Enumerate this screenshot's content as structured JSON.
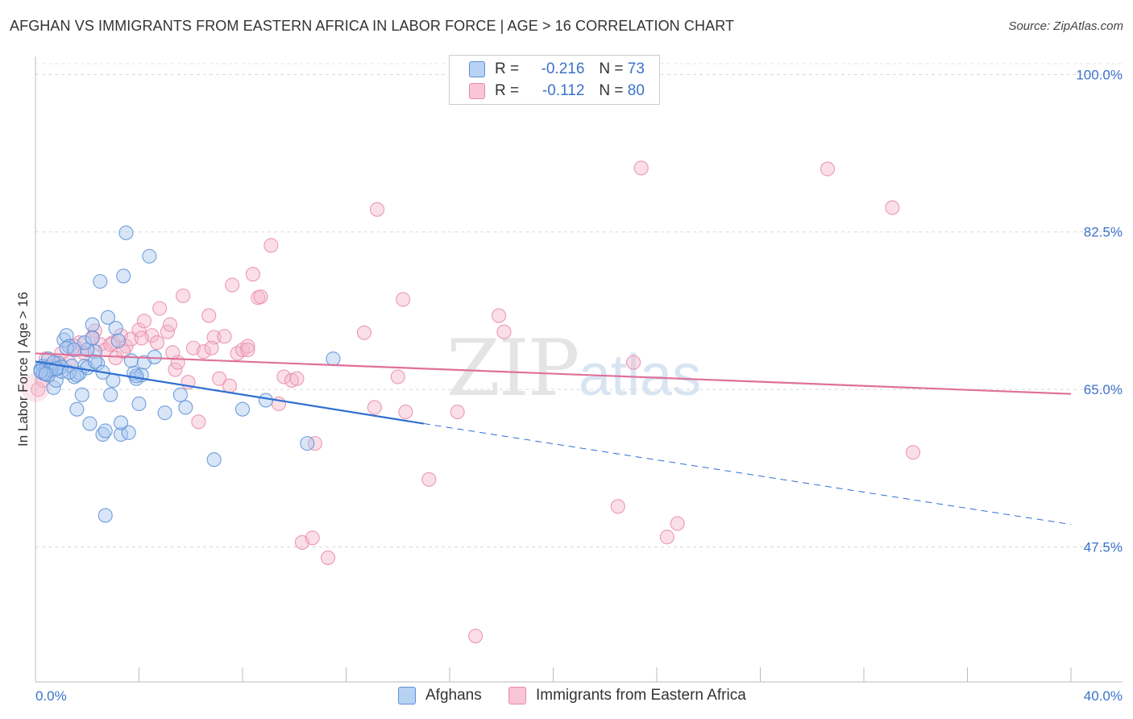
{
  "title": "AFGHAN VS IMMIGRANTS FROM EASTERN AFRICA IN LABOR FORCE | AGE > 16 CORRELATION CHART",
  "source": "Source: ZipAtlas.com",
  "colors": {
    "blue_fill": "#a8c8f0",
    "blue_stroke": "#5b8fd6",
    "blue_line": "#2f6fd1",
    "pink_fill": "#f5b8cb",
    "pink_stroke": "#e98aa8",
    "pink_line": "#e0709a",
    "axis_text": "#3b72c9"
  },
  "legend": {
    "r_label": "R =",
    "n_label": "N =",
    "rows": [
      {
        "r": "-0.216",
        "n": "73"
      },
      {
        "r": "-0.112",
        "n": "80"
      }
    ]
  },
  "watermark": {
    "zip": "ZIP",
    "atlas": "atlas"
  },
  "chart_data": {
    "type": "scatter",
    "xlabel": "",
    "ylabel": "In Labor Force | Age > 16",
    "xlim": [
      0,
      40
    ],
    "ylim": [
      32.5,
      102
    ],
    "x_tick_labels": [
      "0.0%",
      "40.0%"
    ],
    "y_ticks": [
      47.5,
      65.0,
      82.5,
      100.0
    ],
    "y_tick_labels": [
      "47.5%",
      "65.0%",
      "82.5%",
      "100.0%"
    ],
    "grid": true,
    "series": [
      {
        "name": "Afghans",
        "trend": {
          "x0": 0,
          "y0": 68.1,
          "x1": 15,
          "y1": 61.2,
          "dash_to_x": 40,
          "dash_to_y": 50.0
        },
        "points": [
          [
            0.2,
            67.2
          ],
          [
            0.3,
            67.6
          ],
          [
            0.4,
            66.8
          ],
          [
            0.5,
            68.4
          ],
          [
            0.6,
            67.1
          ],
          [
            0.7,
            65.2
          ],
          [
            0.8,
            66.0
          ],
          [
            0.9,
            67.4
          ],
          [
            1.0,
            67.0
          ],
          [
            1.1,
            70.5
          ],
          [
            1.2,
            71.0
          ],
          [
            1.3,
            69.8
          ],
          [
            1.4,
            67.6
          ],
          [
            1.5,
            66.4
          ],
          [
            1.6,
            62.8
          ],
          [
            1.7,
            66.8
          ],
          [
            1.8,
            64.4
          ],
          [
            1.9,
            67.6
          ],
          [
            2.0,
            67.4
          ],
          [
            2.1,
            61.2
          ],
          [
            2.2,
            72.2
          ],
          [
            2.3,
            69.2
          ],
          [
            2.4,
            67.9
          ],
          [
            2.5,
            77.0
          ],
          [
            2.6,
            60.0
          ],
          [
            2.7,
            60.4
          ],
          [
            2.8,
            73.0
          ],
          [
            2.9,
            64.4
          ],
          [
            3.0,
            66.0
          ],
          [
            3.1,
            71.8
          ],
          [
            3.2,
            70.4
          ],
          [
            3.3,
            60.0
          ],
          [
            3.4,
            77.6
          ],
          [
            3.6,
            60.2
          ],
          [
            3.5,
            82.4
          ],
          [
            3.7,
            68.2
          ],
          [
            3.8,
            66.8
          ],
          [
            3.9,
            66.2
          ],
          [
            4.0,
            63.4
          ],
          [
            4.1,
            66.6
          ],
          [
            4.2,
            68.0
          ],
          [
            4.4,
            79.8
          ],
          [
            4.6,
            68.6
          ],
          [
            5.0,
            62.4
          ],
          [
            5.6,
            64.4
          ],
          [
            5.8,
            63.0
          ],
          [
            6.9,
            57.2
          ],
          [
            8.0,
            62.8
          ],
          [
            8.9,
            63.8
          ],
          [
            10.5,
            59.0
          ],
          [
            11.5,
            68.4
          ],
          [
            2.7,
            51.0
          ],
          [
            2.0,
            69.4
          ],
          [
            1.2,
            69.6
          ],
          [
            0.9,
            67.9
          ],
          [
            0.4,
            67.4
          ],
          [
            0.5,
            66.6
          ],
          [
            3.3,
            61.3
          ],
          [
            1.5,
            69.4
          ],
          [
            2.3,
            68.1
          ],
          [
            0.7,
            68.0
          ],
          [
            1.0,
            67.5
          ],
          [
            0.6,
            67.2
          ],
          [
            0.3,
            66.8
          ],
          [
            1.9,
            70.2
          ],
          [
            2.6,
            66.9
          ],
          [
            0.2,
            67.0
          ],
          [
            0.8,
            67.3
          ],
          [
            1.3,
            66.9
          ],
          [
            2.2,
            70.7
          ],
          [
            3.9,
            66.5
          ],
          [
            0.4,
            66.7
          ],
          [
            1.6,
            66.6
          ]
        ]
      },
      {
        "name": "Immigrants from Eastern Africa",
        "trend": {
          "x0": 0,
          "y0": 69.0,
          "x1": 40,
          "y1": 64.5
        },
        "points": [
          [
            0.1,
            65.0
          ],
          [
            0.3,
            66.0
          ],
          [
            0.6,
            67.6
          ],
          [
            1.0,
            69.0
          ],
          [
            1.3,
            68.0
          ],
          [
            1.7,
            70.2
          ],
          [
            2.0,
            69.4
          ],
          [
            2.3,
            71.5
          ],
          [
            2.5,
            70.0
          ],
          [
            2.7,
            69.4
          ],
          [
            3.0,
            70.2
          ],
          [
            3.1,
            68.5
          ],
          [
            3.3,
            71.0
          ],
          [
            3.5,
            69.8
          ],
          [
            3.7,
            70.6
          ],
          [
            4.0,
            71.6
          ],
          [
            4.2,
            72.6
          ],
          [
            4.5,
            71.0
          ],
          [
            4.7,
            70.2
          ],
          [
            4.8,
            74.0
          ],
          [
            5.1,
            71.4
          ],
          [
            5.2,
            72.2
          ],
          [
            5.4,
            67.2
          ],
          [
            5.5,
            68.0
          ],
          [
            5.7,
            75.4
          ],
          [
            5.9,
            65.8
          ],
          [
            6.1,
            69.6
          ],
          [
            6.3,
            61.4
          ],
          [
            6.5,
            69.2
          ],
          [
            6.7,
            73.2
          ],
          [
            6.9,
            70.8
          ],
          [
            7.1,
            66.2
          ],
          [
            7.3,
            70.9
          ],
          [
            7.5,
            65.4
          ],
          [
            7.6,
            76.6
          ],
          [
            7.8,
            69.0
          ],
          [
            8.0,
            69.4
          ],
          [
            8.2,
            69.8
          ],
          [
            8.4,
            77.8
          ],
          [
            8.6,
            75.2
          ],
          [
            8.7,
            75.3
          ],
          [
            9.1,
            81.0
          ],
          [
            9.4,
            63.4
          ],
          [
            9.6,
            66.4
          ],
          [
            9.9,
            66.0
          ],
          [
            10.1,
            66.2
          ],
          [
            10.3,
            48.0
          ],
          [
            10.7,
            48.5
          ],
          [
            10.8,
            59.0
          ],
          [
            11.3,
            46.3
          ],
          [
            12.7,
            71.3
          ],
          [
            13.1,
            63.0
          ],
          [
            13.2,
            85.0
          ],
          [
            14.0,
            66.4
          ],
          [
            14.2,
            75.0
          ],
          [
            14.3,
            62.5
          ],
          [
            15.2,
            55.0
          ],
          [
            16.3,
            62.5
          ],
          [
            17.0,
            37.6
          ],
          [
            17.9,
            73.2
          ],
          [
            18.1,
            71.4
          ],
          [
            22.5,
            52.0
          ],
          [
            23.1,
            68.0
          ],
          [
            23.4,
            89.6
          ],
          [
            24.4,
            48.6
          ],
          [
            24.8,
            50.1
          ],
          [
            30.6,
            89.5
          ],
          [
            33.1,
            85.2
          ],
          [
            33.9,
            58.0
          ],
          [
            0.4,
            68.4
          ],
          [
            1.5,
            69.8
          ],
          [
            2.2,
            70.8
          ],
          [
            2.9,
            70.0
          ],
          [
            3.4,
            69.2
          ],
          [
            4.1,
            70.7
          ],
          [
            5.3,
            69.1
          ],
          [
            6.8,
            69.6
          ],
          [
            8.2,
            69.4
          ],
          [
            1.9,
            69.0
          ],
          [
            0.8,
            67.9
          ]
        ]
      }
    ]
  }
}
